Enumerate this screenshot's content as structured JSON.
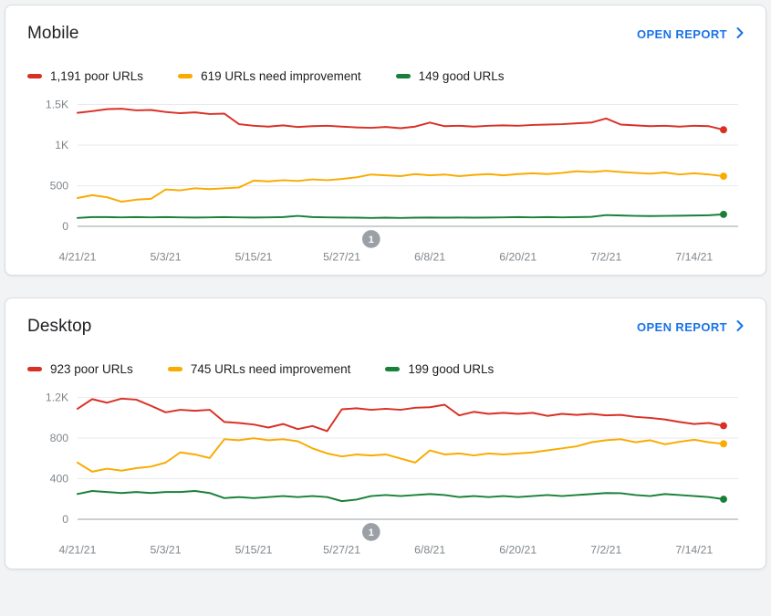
{
  "colors": {
    "link": "#1a73e8",
    "grid": "#e8eaed",
    "axis": "#9aa0a6",
    "tick_text": "#80868b",
    "badge": "#9aa0a6",
    "poor": "#d93025",
    "needs_improvement": "#f9ab00",
    "good": "#188038"
  },
  "cards": [
    {
      "title": "Mobile",
      "open_report_label": "OPEN REPORT",
      "legend": [
        {
          "label": "1,191 poor URLs",
          "color": "#d93025"
        },
        {
          "label": "619 URLs need improvement",
          "color": "#f9ab00"
        },
        {
          "label": "149 good URLs",
          "color": "#188038"
        }
      ]
    },
    {
      "title": "Desktop",
      "open_report_label": "OPEN REPORT",
      "legend": [
        {
          "label": "923 poor URLs",
          "color": "#d93025"
        },
        {
          "label": "745 URLs need improvement",
          "color": "#f9ab00"
        },
        {
          "label": "199 good URLs",
          "color": "#188038"
        }
      ]
    }
  ],
  "chart_data": [
    {
      "type": "line",
      "title": "Mobile",
      "grid": true,
      "legend_position": "top",
      "x_domain": [
        0,
        90
      ],
      "x_step": 2,
      "xticks": [
        {
          "day": 0,
          "label": "4/21/21"
        },
        {
          "day": 12,
          "label": "5/3/21"
        },
        {
          "day": 24,
          "label": "5/15/21"
        },
        {
          "day": 36,
          "label": "5/27/21"
        },
        {
          "day": 48,
          "label": "6/8/21"
        },
        {
          "day": 60,
          "label": "6/20/21"
        },
        {
          "day": 72,
          "label": "7/2/21"
        },
        {
          "day": 84,
          "label": "7/14/21"
        }
      ],
      "ylim": [
        0,
        1500
      ],
      "yticks": [
        {
          "value": 0,
          "label": "0"
        },
        {
          "value": 500,
          "label": "500"
        },
        {
          "value": 1000,
          "label": "1K"
        },
        {
          "value": 1500,
          "label": "1.5K"
        }
      ],
      "series": [
        {
          "name": "poor URLs",
          "color": "#d93025",
          "values": [
            1400,
            1420,
            1445,
            1450,
            1430,
            1435,
            1410,
            1395,
            1405,
            1385,
            1390,
            1260,
            1240,
            1230,
            1245,
            1225,
            1235,
            1240,
            1230,
            1220,
            1215,
            1225,
            1210,
            1230,
            1280,
            1235,
            1240,
            1230,
            1240,
            1245,
            1240,
            1250,
            1255,
            1260,
            1270,
            1280,
            1330,
            1255,
            1245,
            1235,
            1240,
            1230,
            1240,
            1235,
            1191
          ]
        },
        {
          "name": "URLs need improvement",
          "color": "#f9ab00",
          "values": [
            350,
            385,
            360,
            305,
            330,
            340,
            455,
            445,
            470,
            460,
            470,
            480,
            565,
            555,
            570,
            560,
            580,
            570,
            585,
            605,
            640,
            630,
            620,
            645,
            630,
            640,
            620,
            635,
            645,
            630,
            645,
            655,
            645,
            660,
            680,
            670,
            685,
            670,
            660,
            650,
            665,
            640,
            655,
            640,
            619
          ]
        },
        {
          "name": "good URLs",
          "color": "#188038",
          "values": [
            105,
            115,
            115,
            112,
            115,
            112,
            115,
            112,
            110,
            112,
            115,
            112,
            110,
            112,
            115,
            130,
            115,
            112,
            110,
            108,
            105,
            108,
            105,
            108,
            110,
            108,
            110,
            108,
            110,
            112,
            115,
            112,
            115,
            112,
            115,
            118,
            140,
            135,
            130,
            128,
            130,
            132,
            135,
            138,
            149
          ]
        }
      ],
      "annotation": {
        "day": 40,
        "label": "1"
      }
    },
    {
      "type": "line",
      "title": "Desktop",
      "grid": true,
      "legend_position": "top",
      "x_domain": [
        0,
        90
      ],
      "x_step": 2,
      "xticks": [
        {
          "day": 0,
          "label": "4/21/21"
        },
        {
          "day": 12,
          "label": "5/3/21"
        },
        {
          "day": 24,
          "label": "5/15/21"
        },
        {
          "day": 36,
          "label": "5/27/21"
        },
        {
          "day": 48,
          "label": "6/8/21"
        },
        {
          "day": 60,
          "label": "6/20/21"
        },
        {
          "day": 72,
          "label": "7/2/21"
        },
        {
          "day": 84,
          "label": "7/14/21"
        }
      ],
      "ylim": [
        0,
        1200
      ],
      "yticks": [
        {
          "value": 0,
          "label": "0"
        },
        {
          "value": 400,
          "label": "400"
        },
        {
          "value": 800,
          "label": "800"
        },
        {
          "value": 1200,
          "label": "1.2K"
        }
      ],
      "series": [
        {
          "name": "poor URLs",
          "color": "#d93025",
          "values": [
            1090,
            1185,
            1150,
            1190,
            1180,
            1120,
            1055,
            1080,
            1070,
            1080,
            960,
            950,
            935,
            905,
            940,
            890,
            920,
            870,
            1085,
            1095,
            1080,
            1090,
            1080,
            1100,
            1105,
            1130,
            1025,
            1060,
            1040,
            1050,
            1040,
            1050,
            1020,
            1040,
            1030,
            1040,
            1025,
            1030,
            1010,
            1000,
            985,
            960,
            940,
            950,
            923
          ]
        },
        {
          "name": "URLs need improvement",
          "color": "#f9ab00",
          "values": [
            560,
            470,
            500,
            480,
            505,
            520,
            560,
            660,
            640,
            605,
            790,
            780,
            800,
            780,
            790,
            770,
            700,
            650,
            620,
            640,
            630,
            640,
            600,
            560,
            680,
            640,
            650,
            630,
            650,
            640,
            650,
            660,
            680,
            700,
            720,
            760,
            780,
            790,
            760,
            780,
            740,
            765,
            785,
            760,
            745
          ]
        },
        {
          "name": "good URLs",
          "color": "#188038",
          "values": [
            250,
            280,
            270,
            260,
            270,
            260,
            270,
            270,
            280,
            260,
            210,
            220,
            210,
            220,
            230,
            220,
            230,
            220,
            180,
            195,
            230,
            240,
            230,
            240,
            250,
            240,
            220,
            230,
            220,
            230,
            220,
            230,
            240,
            230,
            240,
            250,
            260,
            258,
            240,
            230,
            250,
            240,
            230,
            220,
            199
          ]
        }
      ],
      "annotation": {
        "day": 40,
        "label": "1"
      }
    }
  ]
}
